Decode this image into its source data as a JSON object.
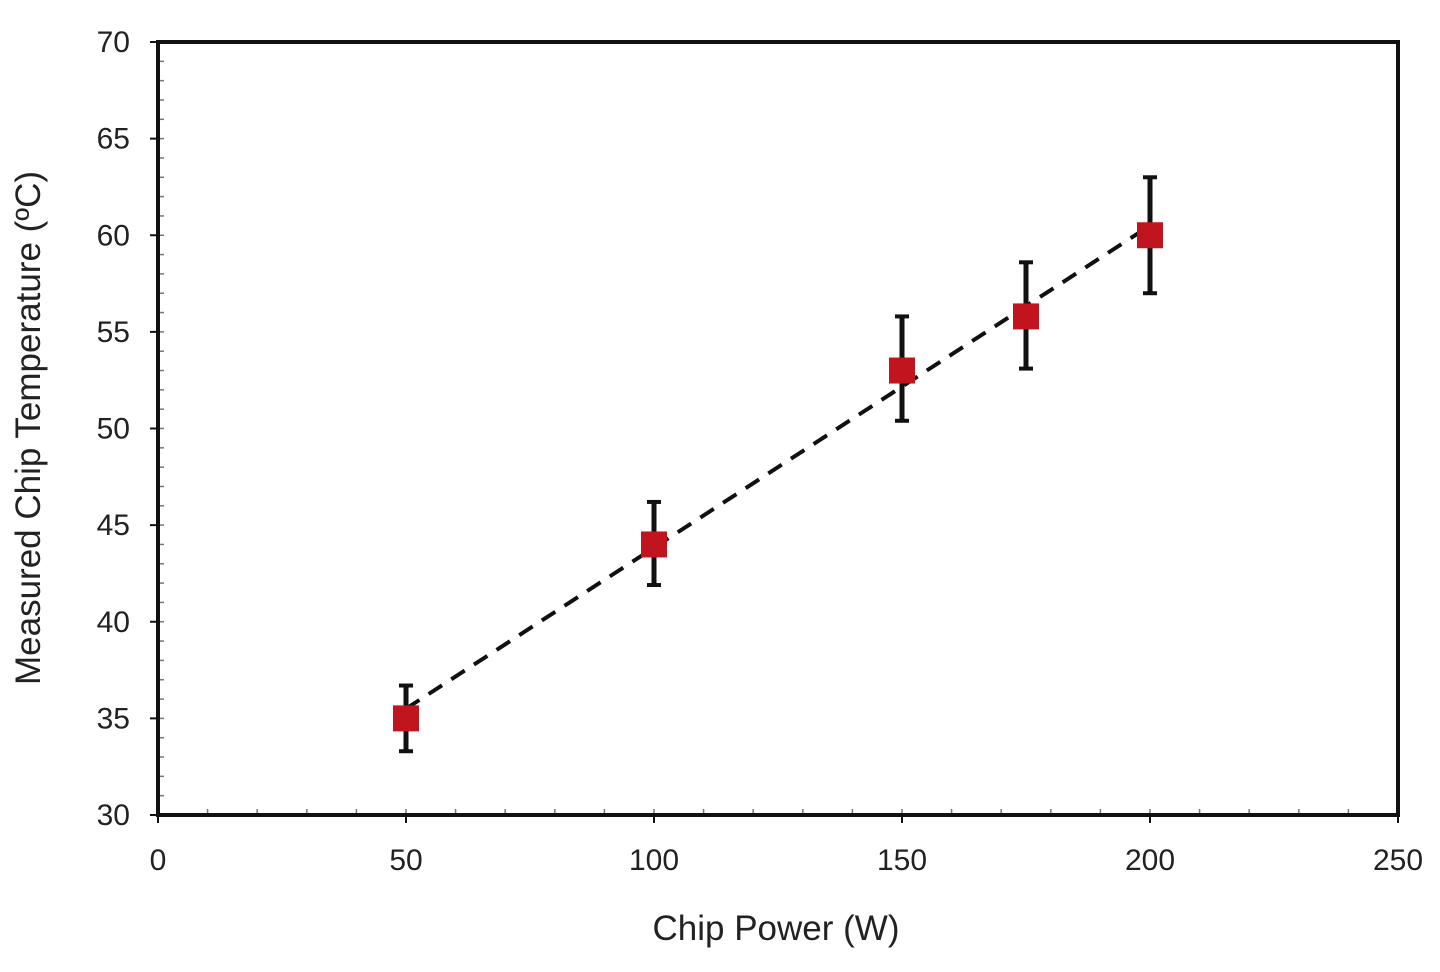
{
  "chart_data": {
    "type": "scatter",
    "title": "",
    "xlabel": "Chip Power (W)",
    "ylabel": "Measured Chip Temperature (ºC)",
    "xlim": [
      0,
      250
    ],
    "ylim": [
      30,
      70
    ],
    "x_ticks": [
      0,
      50,
      100,
      150,
      200,
      250
    ],
    "y_ticks": [
      30,
      35,
      40,
      45,
      50,
      55,
      60,
      65,
      70
    ],
    "grid": false,
    "legend": "none",
    "series": [
      {
        "marker": "square",
        "color": "#c0141f",
        "errorbar_color": "#111111",
        "points": [
          {
            "x": 50,
            "y": 35.0,
            "err_low": 33.3,
            "err_high": 36.7
          },
          {
            "x": 100,
            "y": 44.0,
            "err_low": 41.9,
            "err_high": 46.2
          },
          {
            "x": 150,
            "y": 53.0,
            "err_low": 50.4,
            "err_high": 55.8
          },
          {
            "x": 175,
            "y": 55.8,
            "err_low": 53.1,
            "err_high": 58.6
          },
          {
            "x": 200,
            "y": 60.0,
            "err_low": 57.0,
            "err_high": 63.0
          }
        ]
      }
    ],
    "trendline": {
      "style": "dashed",
      "color": "#111111",
      "points": [
        {
          "x": 50,
          "y": 35.5
        },
        {
          "x": 200,
          "y": 60.5
        }
      ]
    }
  }
}
